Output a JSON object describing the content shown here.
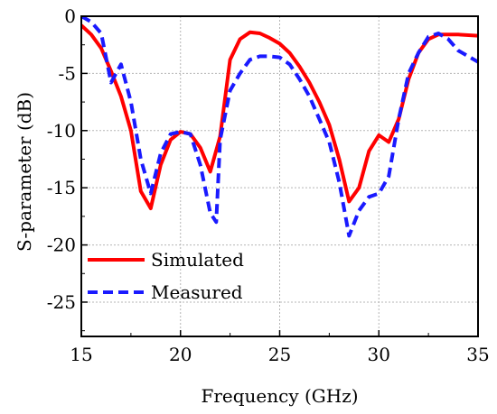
{
  "chart_data": {
    "type": "line",
    "title": "",
    "xlabel": "Frequency (GHz)",
    "ylabel": "S-parameter (dB)",
    "xlim": [
      15,
      35
    ],
    "ylim": [
      -28,
      0
    ],
    "xticks": [
      15,
      20,
      25,
      30,
      35
    ],
    "yticks": [
      0,
      -5,
      -10,
      -15,
      -20,
      -25
    ],
    "grid": true,
    "legend_position": "bottom-left",
    "series": [
      {
        "name": "Simulated",
        "color": "#ff0000",
        "style": "solid",
        "x": [
          15,
          15.5,
          16,
          16.5,
          17,
          17.5,
          18,
          18.5,
          19,
          19.5,
          20,
          20.5,
          21,
          21.5,
          22,
          22.5,
          23,
          23.5,
          24,
          24.5,
          25,
          25.5,
          26,
          26.5,
          27,
          27.5,
          28,
          28.5,
          29,
          29.5,
          30,
          30.5,
          31,
          31.5,
          32,
          32.5,
          33,
          33.5,
          34,
          35
        ],
        "y": [
          -0.8,
          -1.6,
          -2.8,
          -4.8,
          -7.0,
          -10.0,
          -15.3,
          -16.8,
          -13.0,
          -10.8,
          -10.1,
          -10.3,
          -11.5,
          -13.6,
          -10.5,
          -3.8,
          -2.0,
          -1.4,
          -1.5,
          -1.9,
          -2.4,
          -3.2,
          -4.4,
          -5.8,
          -7.5,
          -9.5,
          -12.5,
          -16.2,
          -15.0,
          -11.8,
          -10.4,
          -11.0,
          -9.0,
          -5.5,
          -3.2,
          -2.0,
          -1.6,
          -1.6,
          -1.6,
          -1.7
        ]
      },
      {
        "name": "Measured",
        "color": "#1a1aff",
        "style": "dashed",
        "x": [
          15,
          15.5,
          16,
          16.5,
          17,
          17.5,
          18,
          18.5,
          19,
          19.5,
          20,
          20.5,
          21,
          21.5,
          21.8,
          22,
          22.5,
          23,
          23.5,
          24,
          24.5,
          25,
          25.5,
          26,
          26.5,
          27,
          27.5,
          28,
          28.5,
          29,
          29.5,
          30,
          30.5,
          31,
          31.5,
          32,
          32.5,
          33,
          33.5,
          34,
          35
        ],
        "y": [
          0.0,
          -0.5,
          -1.5,
          -5.8,
          -4.2,
          -7.5,
          -12.5,
          -15.5,
          -12.0,
          -10.3,
          -10.1,
          -10.3,
          -13.0,
          -17.2,
          -18.0,
          -10.8,
          -6.5,
          -5.0,
          -3.8,
          -3.5,
          -3.5,
          -3.6,
          -4.2,
          -5.5,
          -7.0,
          -9.0,
          -11.0,
          -14.5,
          -19.2,
          -17.0,
          -15.8,
          -15.5,
          -14.0,
          -9.0,
          -5.0,
          -3.2,
          -1.8,
          -1.5,
          -2.0,
          -3.0,
          -4.0
        ]
      }
    ]
  }
}
